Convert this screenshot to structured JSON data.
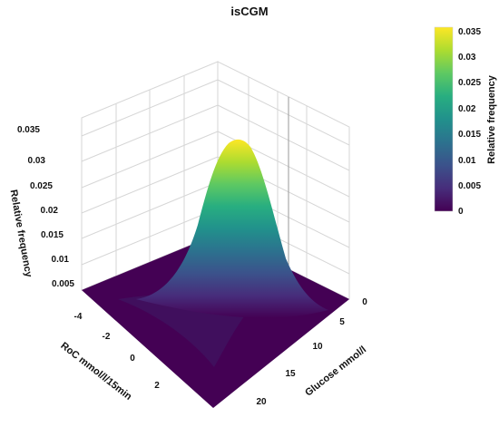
{
  "chart_data": {
    "type": "surface3d",
    "title": "isCGM",
    "x_axis": {
      "label": "RoC mmol/l/15min",
      "ticks": [
        "-4",
        "-2",
        "0",
        "2"
      ],
      "range": [
        -4,
        3
      ]
    },
    "y_axis": {
      "label": "Glucose mmol/l",
      "ticks": [
        "0",
        "5",
        "10",
        "15",
        "20"
      ],
      "range": [
        0,
        22
      ]
    },
    "z_axis": {
      "label": "Relative frequency",
      "ticks": [
        "0.005",
        "0.01",
        "0.015",
        "0.02",
        "0.025",
        "0.03",
        "0.035"
      ],
      "range": [
        0,
        0.036
      ]
    },
    "colorbar": {
      "title": "Relative frequency",
      "ticks": [
        "0",
        "0.005",
        "0.01",
        "0.015",
        "0.02",
        "0.025",
        "0.03",
        "0.035"
      ],
      "range": [
        0,
        0.036
      ],
      "colorscale": "viridis"
    },
    "peak": {
      "roc": 0,
      "glucose": 6.5,
      "value": 0.033
    },
    "grid": true
  }
}
